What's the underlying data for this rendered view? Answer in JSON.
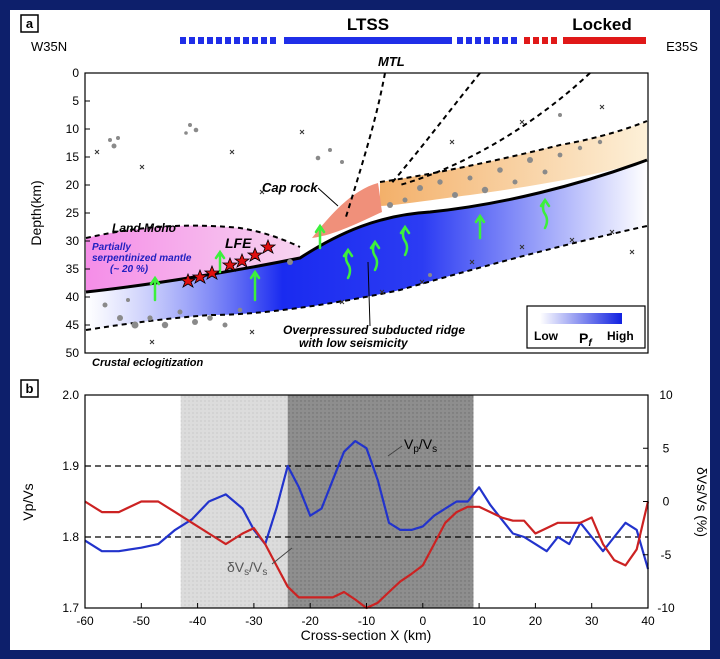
{
  "chart_data": [
    {
      "type": "scatter",
      "panel_label": "a",
      "bar_labels": {
        "ltss": "LTSS",
        "locked": "Locked"
      },
      "left_label": "W35N",
      "right_label": "E35S",
      "ylabel": "Depth(km)",
      "ylim": [
        0,
        50
      ],
      "yticks": [
        "0",
        "5",
        "10",
        "15",
        "20",
        "25",
        "30",
        "35",
        "40",
        "45",
        "50"
      ],
      "annotations": {
        "mtl": "MTL",
        "cap_rock": "Cap rock",
        "land_moho": "Land Moho",
        "mantle_1": "Partially",
        "mantle_2": "serpentinized mantle",
        "mantle_3": "(~ 20 %)",
        "lfe": "LFE",
        "ridge_1": "Overpressured subducted ridge",
        "ridge_2": "with low seismicity",
        "eclog": "Crustal eclogitization"
      },
      "legend": {
        "low": "Low",
        "high": "High",
        "symbol": "P",
        "subscript": "f"
      },
      "colors": {
        "blue": "#1f2ee8",
        "red": "#e01818",
        "cap": "#f0907a",
        "orange": "#f2c98a",
        "pink": "#f080e0"
      }
    },
    {
      "type": "line",
      "panel_label": "b",
      "xlabel": "Cross-section X (km)",
      "ylabel": "Vp/Vs",
      "y2label": "δVs/Vs (%)",
      "xlim": [
        -60,
        40
      ],
      "ylim": [
        1.7,
        2.0
      ],
      "y2lim": [
        -10,
        10
      ],
      "xticks": [
        -60,
        -50,
        -40,
        -30,
        -20,
        -10,
        0,
        10,
        20,
        30,
        40
      ],
      "yticks": [
        "1.7",
        "1.8",
        "1.9",
        "2.0"
      ],
      "y2ticks": [
        "-10",
        "-5",
        "0",
        "5",
        "10"
      ],
      "shaded_regions": [
        [
          -43,
          -24
        ],
        [
          -24,
          9
        ]
      ],
      "reference_lines": [
        1.8,
        1.9
      ],
      "series": [
        {
          "name": "Vp/Vs",
          "axis": "left",
          "color": "#2233cc",
          "x": [
            -60,
            -57,
            -54,
            -50,
            -47,
            -44,
            -41,
            -38,
            -35,
            -32,
            -30,
            -28,
            -26,
            -24,
            -22,
            -20,
            -18,
            -16,
            -14,
            -12,
            -10,
            -8,
            -6,
            -4,
            -2,
            0,
            2,
            4,
            6,
            8,
            10,
            12,
            14,
            16,
            18,
            20,
            22,
            24,
            26,
            28,
            30,
            32,
            34,
            36,
            38,
            40
          ],
          "y": [
            1.795,
            1.78,
            1.78,
            1.785,
            1.79,
            1.81,
            1.825,
            1.85,
            1.86,
            1.84,
            1.81,
            1.79,
            1.84,
            1.9,
            1.87,
            1.83,
            1.84,
            1.88,
            1.92,
            1.935,
            1.925,
            1.88,
            1.82,
            1.81,
            1.81,
            1.815,
            1.83,
            1.84,
            1.85,
            1.85,
            1.87,
            1.845,
            1.825,
            1.805,
            1.8,
            1.79,
            1.78,
            1.8,
            1.79,
            1.82,
            1.8,
            1.78,
            1.8,
            1.82,
            1.81,
            1.755
          ]
        },
        {
          "name": "δVs/Vs",
          "axis": "right",
          "color": "#cc2222",
          "x": [
            -60,
            -57,
            -54,
            -50,
            -47,
            -44,
            -41,
            -38,
            -35,
            -32,
            -30,
            -28,
            -26,
            -24,
            -22,
            -20,
            -18,
            -16,
            -14,
            -12,
            -10,
            -8,
            -6,
            -4,
            -2,
            0,
            2,
            4,
            6,
            8,
            10,
            12,
            14,
            16,
            18,
            20,
            22,
            24,
            26,
            28,
            30,
            32,
            34,
            36,
            38,
            40
          ],
          "y": [
            0,
            -1,
            -1,
            0,
            0,
            -1,
            -2,
            -3,
            -4,
            -3,
            -2.5,
            -4,
            -6,
            -8,
            -9,
            -9,
            -9,
            -9,
            -8.5,
            -9.2,
            -10,
            -9.5,
            -8.5,
            -7.5,
            -6.8,
            -6,
            -4,
            -2,
            -1,
            -0.5,
            -0.5,
            -1,
            -1.5,
            -1.8,
            -1.8,
            -3,
            -2.5,
            -2,
            -2,
            -2,
            -1.5,
            -4,
            -5.5,
            -6,
            -4.5,
            0
          ]
        }
      ],
      "annotations": {
        "vpvs_base": "V",
        "vpvs_sub1": "p",
        "vpvs_slash": "/V",
        "vpvs_sub2": "s",
        "dvs_base": "δV",
        "dvs_sub1": "s",
        "dvs_slash": "/V",
        "dvs_sub2": "s"
      }
    }
  ]
}
